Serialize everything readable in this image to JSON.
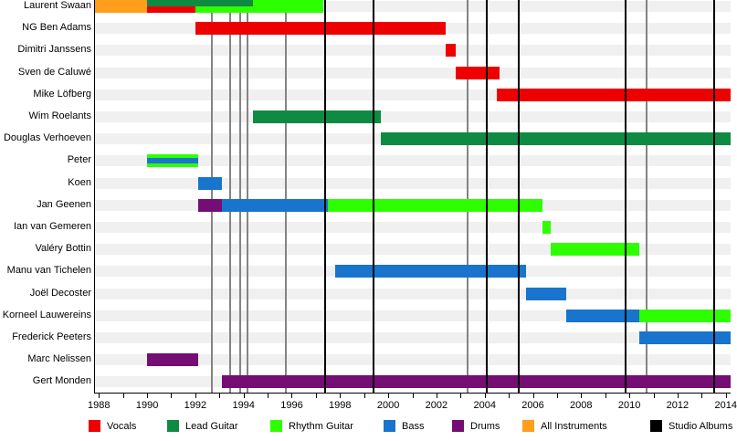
{
  "chart_data": {
    "type": "bar",
    "subtype": "band-member-gantt-timeline",
    "title": "",
    "xlabel": "",
    "ylabel": "",
    "axis": {
      "start": 1987.8,
      "end": 2014.2,
      "tick_start": 1988,
      "tick_end": 2014,
      "tick_step": 1,
      "label_step": 2,
      "labels": [
        "1988",
        "1990",
        "1992",
        "1994",
        "1996",
        "1998",
        "2000",
        "2002",
        "2004",
        "2006",
        "2008",
        "2010",
        "2012",
        "2014"
      ]
    },
    "roles": {
      "vocals": "#ee0000",
      "lead_guitar": "#0f8a42",
      "rhythm_guitar": "#2eff00",
      "bass": "#1874cd",
      "drums": "#740d74",
      "all_instruments": "#ff9e1c"
    },
    "members": [
      {
        "name": "Laurent Swaan",
        "segments": [
          {
            "role": "all_instruments",
            "start": 1987.8,
            "end": 1990.0,
            "lane": "full"
          },
          {
            "role": "lead_guitar",
            "start": 1990.0,
            "end": 1994.4,
            "lane": "top"
          },
          {
            "role": "vocals",
            "start": 1990.0,
            "end": 1992.0,
            "lane": "bottom"
          },
          {
            "role": "rhythm_guitar",
            "start": 1992.0,
            "end": 1994.4,
            "lane": "bottom"
          },
          {
            "role": "rhythm_guitar",
            "start": 1994.4,
            "end": 1997.3,
            "lane": "full"
          }
        ]
      },
      {
        "name": "NG Ben Adams",
        "segments": [
          {
            "role": "vocals",
            "start": 1992.0,
            "end": 2002.4,
            "lane": "full"
          }
        ]
      },
      {
        "name": "Dimitri Janssens",
        "segments": [
          {
            "role": "vocals",
            "start": 2002.4,
            "end": 2002.8,
            "lane": "full"
          }
        ]
      },
      {
        "name": "Sven de Caluwé",
        "segments": [
          {
            "role": "vocals",
            "start": 2002.8,
            "end": 2004.6,
            "lane": "full"
          }
        ]
      },
      {
        "name": "Mike Löfberg",
        "segments": [
          {
            "role": "vocals",
            "start": 2004.5,
            "end": 2014.2,
            "lane": "full"
          }
        ]
      },
      {
        "name": "Wim Roelants",
        "segments": [
          {
            "role": "lead_guitar",
            "start": 1994.4,
            "end": 1999.7,
            "lane": "full"
          }
        ]
      },
      {
        "name": "Douglas Verhoeven",
        "segments": [
          {
            "role": "lead_guitar",
            "start": 1999.7,
            "end": 2014.2,
            "lane": "full"
          }
        ]
      },
      {
        "name": "Peter",
        "segments": [
          {
            "role": "rhythm_guitar",
            "start": 1990.0,
            "end": 1992.1,
            "lane": "stripe_top"
          },
          {
            "role": "bass",
            "start": 1990.0,
            "end": 1992.1,
            "lane": "stripe_mid"
          },
          {
            "role": "rhythm_guitar",
            "start": 1990.0,
            "end": 1992.1,
            "lane": "stripe_bottom"
          }
        ]
      },
      {
        "name": "Koen",
        "segments": [
          {
            "role": "bass",
            "start": 1992.1,
            "end": 1993.1,
            "lane": "full"
          }
        ]
      },
      {
        "name": "Jan Geenen",
        "segments": [
          {
            "role": "drums",
            "start": 1992.1,
            "end": 1993.1,
            "lane": "full"
          },
          {
            "role": "rhythm_guitar",
            "start": 1997.2,
            "end": 2006.4,
            "lane": "full"
          },
          {
            "role": "bass",
            "start": 1993.1,
            "end": 1997.5,
            "lane": "full"
          }
        ]
      },
      {
        "name": "Ian van Gemeren",
        "segments": [
          {
            "role": "rhythm_guitar",
            "start": 2006.4,
            "end": 2006.75,
            "lane": "full"
          }
        ]
      },
      {
        "name": "Valéry Bottin",
        "segments": [
          {
            "role": "rhythm_guitar",
            "start": 2006.75,
            "end": 2010.4,
            "lane": "full"
          }
        ]
      },
      {
        "name": "Manu van Tichelen",
        "segments": [
          {
            "role": "bass",
            "start": 1997.8,
            "end": 2005.7,
            "lane": "full"
          }
        ]
      },
      {
        "name": "Joël Decoster",
        "segments": [
          {
            "role": "bass",
            "start": 2005.7,
            "end": 2007.4,
            "lane": "full"
          }
        ]
      },
      {
        "name": "Korneel Lauwereins",
        "segments": [
          {
            "role": "bass",
            "start": 2007.4,
            "end": 2010.4,
            "lane": "full"
          },
          {
            "role": "rhythm_guitar",
            "start": 2010.4,
            "end": 2014.2,
            "lane": "full"
          }
        ]
      },
      {
        "name": "Frederick Peeters",
        "segments": [
          {
            "role": "bass",
            "start": 2010.4,
            "end": 2014.2,
            "lane": "full"
          }
        ]
      },
      {
        "name": "Marc Nelissen",
        "segments": [
          {
            "role": "drums",
            "start": 1990.0,
            "end": 1992.1,
            "lane": "full"
          }
        ]
      },
      {
        "name": "Gert Monden",
        "segments": [
          {
            "role": "drums",
            "start": 1993.1,
            "end": 2014.2,
            "lane": "full"
          }
        ]
      }
    ],
    "releases": {
      "studio_albums": {
        "label": "Studio Albums",
        "color": "#000000",
        "layer": "front",
        "years": [
          1997.4,
          1999.4,
          2004.1,
          2005.4,
          2009.85,
          2013.5
        ]
      },
      "other_releases": {
        "label": "",
        "color": "#848484",
        "layer": "back",
        "years": [
          1992.7,
          1993.45,
          1993.85,
          1994.15,
          1995.75,
          2003.3,
          2010.7
        ]
      }
    },
    "legend": [
      {
        "label": "Vocals",
        "color": "#ee0000"
      },
      {
        "label": "Lead Guitar",
        "color": "#0f8a42"
      },
      {
        "label": "Rhythm Guitar",
        "color": "#2eff00"
      },
      {
        "label": "Bass",
        "color": "#1874cd"
      },
      {
        "label": "Drums",
        "color": "#740d74"
      },
      {
        "label": "All Instruments",
        "color": "#ff9e1c"
      },
      {
        "label": "Studio Albums",
        "color": "#000000"
      }
    ],
    "colors": {
      "background": "#ffffff",
      "row_stripe": "#f0f0f0",
      "axis": "#000000",
      "text": "#000000"
    }
  }
}
